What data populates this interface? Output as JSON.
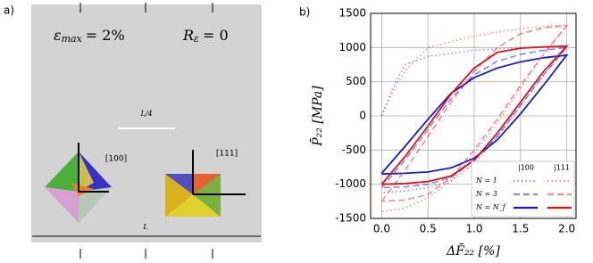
{
  "panel_a": {
    "label": "a)",
    "strain_symbol": "ε",
    "strain_sub": "max",
    "strain_value": "= 2%",
    "ratio_symbol": "R",
    "ratio_sub": "ε",
    "ratio_value": "= 0",
    "quarter_length": "L/4",
    "crystal_100": "[100]",
    "crystal_111": "[111]",
    "length": "L"
  },
  "chart_data": {
    "type": "line",
    "panel_label": "b)",
    "x_label": "ΔF̄₂₂ [%]",
    "y_label": "P̄₂₂ [MPa]",
    "xlim": [
      -0.12,
      2.1
    ],
    "ylim": [
      -1500,
      1500
    ],
    "xticks": [
      {
        "value": 0,
        "label": "0.0"
      },
      {
        "value": 0.5,
        "label": "0.5"
      },
      {
        "value": 1,
        "label": "1.0"
      },
      {
        "value": 1.5,
        "label": "1.5"
      },
      {
        "value": 2,
        "label": "2.0"
      }
    ],
    "yticks": [
      -1500,
      -1000,
      -500,
      0,
      500,
      1000,
      1500
    ],
    "grid": true,
    "legend": {
      "columns": [
        "|100",
        "|111"
      ],
      "rows": [
        "N = 1",
        "N = 3",
        "N = N_f"
      ]
    },
    "series": [
      {
        "color": "#3b3bdd",
        "style": "dotted",
        "x": [
          0,
          0.1,
          0.25,
          0.5,
          1,
          1.5,
          2,
          1.75,
          1.5,
          1.25,
          1,
          0.75,
          0.5,
          0.25,
          0
        ],
        "y": [
          0,
          350,
          750,
          870,
          960,
          1000,
          1020,
          600,
          150,
          -300,
          -700,
          -950,
          -1050,
          -1100,
          -1120
        ]
      },
      {
        "color": "#3b3bdd",
        "style": "dashed",
        "x": [
          0,
          0.25,
          0.5,
          0.75,
          1,
          1.25,
          1.5,
          1.75,
          2,
          1.75,
          1.5,
          1.25,
          1,
          0.75,
          0.5,
          0.25,
          0
        ],
        "y": [
          -1050,
          -650,
          -200,
          250,
          600,
          800,
          900,
          960,
          1000,
          600,
          150,
          -300,
          -650,
          -900,
          -1000,
          -1040,
          -1050
        ]
      },
      {
        "color": "#1a1ad0",
        "style": "solid",
        "x": [
          0,
          0.25,
          0.5,
          0.75,
          1,
          1.25,
          1.5,
          1.75,
          2,
          1.75,
          1.5,
          1.25,
          1,
          0.75,
          0.5,
          0.25,
          0
        ],
        "y": [
          -840,
          -450,
          -50,
          330,
          560,
          700,
          790,
          850,
          890,
          450,
          30,
          -350,
          -620,
          -760,
          -820,
          -840,
          -850
        ]
      },
      {
        "color": "#e8424a",
        "style": "dotted",
        "x": [
          0,
          0.1,
          0.25,
          0.5,
          1,
          1.5,
          2,
          1.75,
          1.5,
          1.25,
          1,
          0.75,
          0.5,
          0.25,
          0
        ],
        "y": [
          0,
          300,
          650,
          1000,
          1170,
          1280,
          1330,
          900,
          400,
          -100,
          -550,
          -950,
          -1200,
          -1350,
          -1400
        ]
      },
      {
        "color": "#e8424a",
        "style": "dashed",
        "x": [
          0,
          0.25,
          0.5,
          0.75,
          1,
          1.25,
          1.5,
          1.75,
          2,
          1.75,
          1.5,
          1.25,
          1,
          0.75,
          0.5,
          0.25,
          0
        ],
        "y": [
          -1250,
          -800,
          -300,
          200,
          650,
          1000,
          1200,
          1290,
          1320,
          900,
          450,
          -50,
          -500,
          -900,
          -1150,
          -1230,
          -1250
        ]
      },
      {
        "color": "#e0101a",
        "style": "solid",
        "x": [
          0,
          0.25,
          0.5,
          0.75,
          1,
          1.25,
          1.5,
          1.75,
          2,
          1.75,
          1.5,
          1.25,
          1,
          0.75,
          0.5,
          0.25,
          0
        ],
        "y": [
          -1000,
          -600,
          -150,
          320,
          700,
          930,
          990,
          1010,
          1020,
          650,
          200,
          -250,
          -650,
          -880,
          -960,
          -990,
          -1000
        ]
      }
    ]
  }
}
